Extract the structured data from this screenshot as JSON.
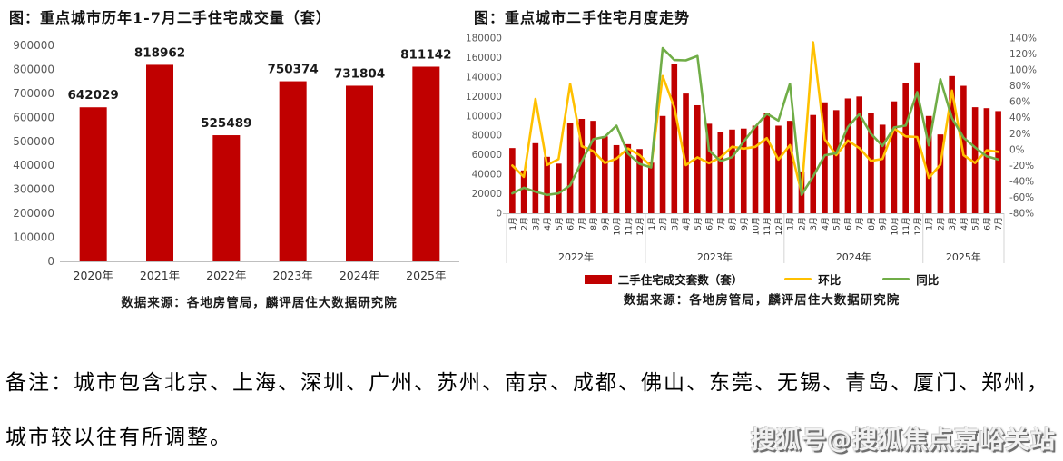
{
  "colors": {
    "bar_red": "#c00000",
    "line_yellow": "#ffc000",
    "line_green": "#70ad47",
    "axis_text": "#595959",
    "axis_line": "#bfbfbf",
    "divider": "#c9c9c9",
    "label_text": "#1a1a1a"
  },
  "note": {
    "line1": "备注：城市包含北京、上海、深圳、广州、苏州、南京、成都、佛山、东莞、无锡、青岛、厦门、郑州，",
    "line2": "城市较以往有所调整。"
  },
  "watermark": "搜狐号@搜狐焦点嘉峪关站",
  "chart_data": [
    {
      "type": "bar",
      "title": "图：重点城市历年1-7月二手住宅成交量（套）",
      "source": "数据来源：各地房管局，麟评居住大数据研究院",
      "categories": [
        "2020年",
        "2021年",
        "2022年",
        "2023年",
        "2024年",
        "2025年"
      ],
      "values": [
        642029,
        818962,
        525489,
        750374,
        731804,
        811142
      ],
      "value_labels_shown": true,
      "xlabel": "",
      "ylabel": "",
      "ylim": [
        0,
        900000
      ],
      "ytick_step": 100000,
      "grid": false,
      "legend_position": "none"
    },
    {
      "type": "bar+line",
      "title": "图：重点城市二手住宅月度走势",
      "source": "数据来源：各地房管局，麟评居住大数据研究院",
      "year_groups": [
        {
          "label": "2022年",
          "months": 12
        },
        {
          "label": "2023年",
          "months": 12
        },
        {
          "label": "2024年",
          "months": 12
        },
        {
          "label": "2025年",
          "months": 7
        }
      ],
      "month_labels": [
        "1月",
        "2月",
        "3月",
        "4月",
        "5月",
        "6月",
        "7月",
        "8月",
        "9月",
        "10月",
        "11月",
        "12月",
        "1月",
        "2月",
        "3月",
        "4月",
        "5月",
        "6月",
        "7月",
        "8月",
        "9月",
        "10月",
        "11月",
        "12月",
        "1月",
        "2月",
        "3月",
        "4月",
        "5月",
        "6月",
        "7月",
        "8月",
        "9月",
        "10月",
        "11月",
        "12月",
        "1月",
        "2月",
        "3月",
        "4月",
        "5月",
        "6月",
        "7月"
      ],
      "series": [
        {
          "name": "二手住宅成交套数（套）",
          "render": "bar",
          "axis": "left",
          "color": "#c00000",
          "values": [
            67000,
            44000,
            72000,
            58000,
            51000,
            93000,
            97000,
            95000,
            79000,
            70000,
            71000,
            66000,
            52000,
            100000,
            153000,
            123000,
            111000,
            92000,
            83000,
            86000,
            87000,
            90000,
            103000,
            90000,
            95000,
            43000,
            101000,
            114000,
            106000,
            118000,
            120000,
            103000,
            91000,
            115000,
            134000,
            155000,
            100000,
            81000,
            141000,
            131000,
            109000,
            108000,
            105000
          ]
        },
        {
          "name": "环比",
          "render": "line",
          "axis": "right",
          "color": "#ffc000",
          "values": [
            -20.0,
            -34.3,
            63.6,
            -19.4,
            -12.1,
            82.4,
            4.3,
            -2.1,
            -16.8,
            -11.4,
            1.4,
            -7.0,
            -21.2,
            92.3,
            53.0,
            -19.6,
            -9.8,
            -17.1,
            -9.8,
            3.6,
            1.2,
            3.4,
            14.4,
            -12.6,
            5.6,
            -54.7,
            134.9,
            12.9,
            -7.0,
            11.3,
            1.7,
            -14.2,
            -11.7,
            26.4,
            16.5,
            15.7,
            -35.5,
            -19.0,
            74.1,
            -7.1,
            -16.8,
            -0.9,
            -2.8
          ]
        },
        {
          "name": "同比",
          "render": "line",
          "axis": "right",
          "color": "#70ad47",
          "values": [
            -55,
            -48,
            -53,
            -57,
            -55,
            -45,
            -15,
            13,
            16,
            30,
            -5,
            -18,
            -22.4,
            127.3,
            112.5,
            112.1,
            117.6,
            -1.1,
            -14.4,
            -9.5,
            10.1,
            28.6,
            45.1,
            36.4,
            82.7,
            -57.0,
            -34.0,
            -7.3,
            -4.5,
            28.3,
            44.6,
            19.8,
            4.6,
            27.8,
            30.1,
            72.2,
            5.3,
            88.4,
            39.6,
            14.9,
            2.8,
            -8.5,
            -12.5
          ]
        }
      ],
      "left_axis": {
        "min": 0,
        "max": 180000,
        "step": 20000
      },
      "right_axis": {
        "min": -80,
        "max": 140,
        "step": 20,
        "suffix": "%"
      },
      "grid": false,
      "legend_position": "bottom"
    }
  ]
}
